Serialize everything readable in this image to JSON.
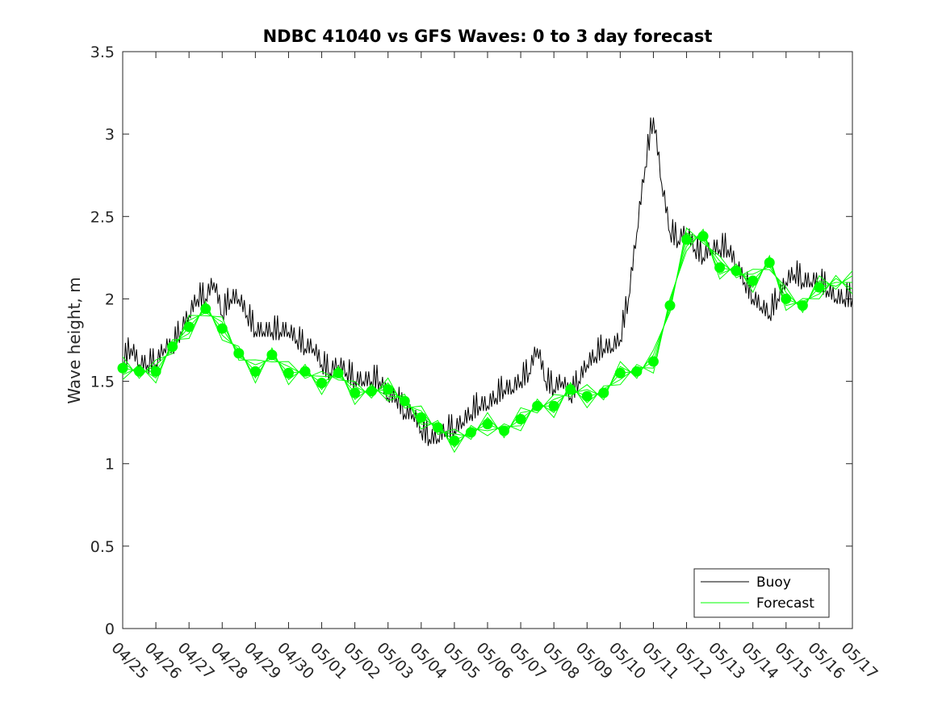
{
  "chart_data": {
    "type": "line",
    "title": "NDBC 41040 vs GFS Waves: 0 to 3 day forecast",
    "xlabel": "",
    "ylabel": "Wave height, m",
    "x_axis": {
      "min": "04/25",
      "max": "05/17",
      "tick_labels": [
        "04/25",
        "04/26",
        "04/27",
        "04/28",
        "04/29",
        "04/30",
        "05/01",
        "05/02",
        "05/03",
        "05/04",
        "05/05",
        "05/06",
        "05/07",
        "05/08",
        "05/09",
        "05/10",
        "05/11",
        "05/12",
        "05/13",
        "05/14",
        "05/15",
        "05/16",
        "05/17"
      ]
    },
    "y_axis": {
      "min": 0,
      "max": 3.5,
      "ticks": [
        0,
        0.5,
        1,
        1.5,
        2,
        2.5,
        3,
        3.5
      ],
      "tick_labels": [
        "0",
        "0.5",
        "1",
        "1.5",
        "2",
        "2.5",
        "3",
        "3.5"
      ]
    },
    "grid": false,
    "legend": {
      "placement": "bottom-right",
      "entries": [
        {
          "label": "Buoy",
          "color": "#000000"
        },
        {
          "label": "Forecast",
          "color": "#00ff00"
        }
      ]
    },
    "colors": {
      "buoy": "#000000",
      "forecast": "#00ff00",
      "forecast_markers": "#00ff00"
    },
    "series": [
      {
        "name": "Buoy",
        "x_day_offsets_from_04_25": [
          0.0,
          0.25,
          0.5,
          0.75,
          1.0,
          1.25,
          1.5,
          1.75,
          2.0,
          2.25,
          2.5,
          2.75,
          3.0,
          3.25,
          3.5,
          3.75,
          4.0,
          4.25,
          4.5,
          4.75,
          5.0,
          5.25,
          5.5,
          5.75,
          6.0,
          6.25,
          6.5,
          6.75,
          7.0,
          7.25,
          7.5,
          7.75,
          8.0,
          8.25,
          8.5,
          8.75,
          9.0,
          9.25,
          9.5,
          9.75,
          10.0,
          10.25,
          10.5,
          10.75,
          11.0,
          11.25,
          11.5,
          11.75,
          12.0,
          12.25,
          12.5,
          12.75,
          13.0,
          13.25,
          13.5,
          13.75,
          14.0,
          14.25,
          14.5,
          14.75,
          15.0,
          15.25,
          15.5,
          15.75,
          16.0,
          16.25,
          16.5,
          16.75,
          17.0,
          17.25,
          17.5,
          17.75,
          18.0,
          18.25,
          18.5,
          18.75,
          19.0,
          19.25,
          19.5,
          19.75,
          20.0,
          20.25,
          20.5,
          20.75,
          21.0,
          21.25,
          21.5,
          21.75,
          22.0
        ],
        "values": [
          1.6,
          1.7,
          1.6,
          1.6,
          1.6,
          1.7,
          1.7,
          1.8,
          1.9,
          2.0,
          2.0,
          2.1,
          1.9,
          2.0,
          2.0,
          1.9,
          1.8,
          1.8,
          1.8,
          1.8,
          1.8,
          1.75,
          1.7,
          1.7,
          1.6,
          1.55,
          1.6,
          1.55,
          1.5,
          1.5,
          1.5,
          1.5,
          1.4,
          1.4,
          1.3,
          1.3,
          1.2,
          1.15,
          1.15,
          1.2,
          1.2,
          1.25,
          1.3,
          1.35,
          1.35,
          1.4,
          1.45,
          1.45,
          1.5,
          1.55,
          1.7,
          1.5,
          1.45,
          1.5,
          1.4,
          1.5,
          1.6,
          1.65,
          1.7,
          1.7,
          1.75,
          2.0,
          2.4,
          2.8,
          3.1,
          2.7,
          2.4,
          2.35,
          2.4,
          2.3,
          2.25,
          2.3,
          2.3,
          2.3,
          2.2,
          2.1,
          2.0,
          1.95,
          1.9,
          2.0,
          2.1,
          2.15,
          2.1,
          2.1,
          2.1,
          2.05,
          2.0,
          2.0,
          2.0
        ]
      },
      {
        "name": "Forecast",
        "x_day_offsets_from_04_25": [
          0.0,
          0.5,
          1.0,
          1.5,
          2.0,
          2.5,
          3.0,
          3.5,
          4.0,
          4.5,
          5.0,
          5.5,
          6.0,
          6.5,
          7.0,
          7.5,
          8.0,
          8.5,
          9.0,
          9.5,
          10.0,
          10.5,
          11.0,
          11.5,
          12.0,
          12.5,
          13.0,
          13.5,
          14.0,
          14.5,
          15.0,
          15.5,
          16.0,
          16.5,
          17.0,
          17.5,
          18.0,
          18.5,
          19.0,
          19.5,
          20.0,
          20.5,
          21.0,
          21.5,
          22.0
        ],
        "values": [
          1.58,
          1.56,
          1.56,
          1.71,
          1.83,
          1.94,
          1.82,
          1.67,
          1.56,
          1.66,
          1.55,
          1.56,
          1.49,
          1.55,
          1.43,
          1.44,
          1.45,
          1.38,
          1.28,
          1.22,
          1.14,
          1.19,
          1.24,
          1.2,
          1.27,
          1.35,
          1.35,
          1.45,
          1.41,
          1.43,
          1.55,
          1.56,
          1.62,
          1.96,
          2.36,
          2.38,
          2.19,
          2.17,
          2.11,
          2.22,
          2.0,
          1.96,
          2.07,
          2.1,
          2.1
        ]
      }
    ],
    "marker_points": {
      "x_day_offsets_from_04_25": [
        0.0,
        0.5,
        1.0,
        1.5,
        2.0,
        2.5,
        3.0,
        3.5,
        4.0,
        4.5,
        5.0,
        5.5,
        6.0,
        6.5,
        7.0,
        7.5,
        8.0,
        8.5,
        9.0,
        9.5,
        10.0,
        10.5,
        11.0,
        11.5,
        12.0,
        12.5,
        13.0,
        13.5,
        14.0,
        14.5,
        15.0,
        15.5,
        16.0,
        16.5,
        17.0,
        17.5,
        18.0,
        18.5,
        19.0,
        19.5,
        20.0,
        20.5,
        21.0
      ],
      "values": [
        1.58,
        1.56,
        1.56,
        1.71,
        1.83,
        1.94,
        1.82,
        1.67,
        1.56,
        1.66,
        1.55,
        1.56,
        1.49,
        1.55,
        1.43,
        1.44,
        1.45,
        1.38,
        1.28,
        1.22,
        1.14,
        1.19,
        1.24,
        1.2,
        1.27,
        1.35,
        1.35,
        1.45,
        1.41,
        1.43,
        1.55,
        1.56,
        1.62,
        1.96,
        2.36,
        2.38,
        2.19,
        2.17,
        2.11,
        2.22,
        2.0,
        1.96,
        2.07
      ]
    }
  }
}
